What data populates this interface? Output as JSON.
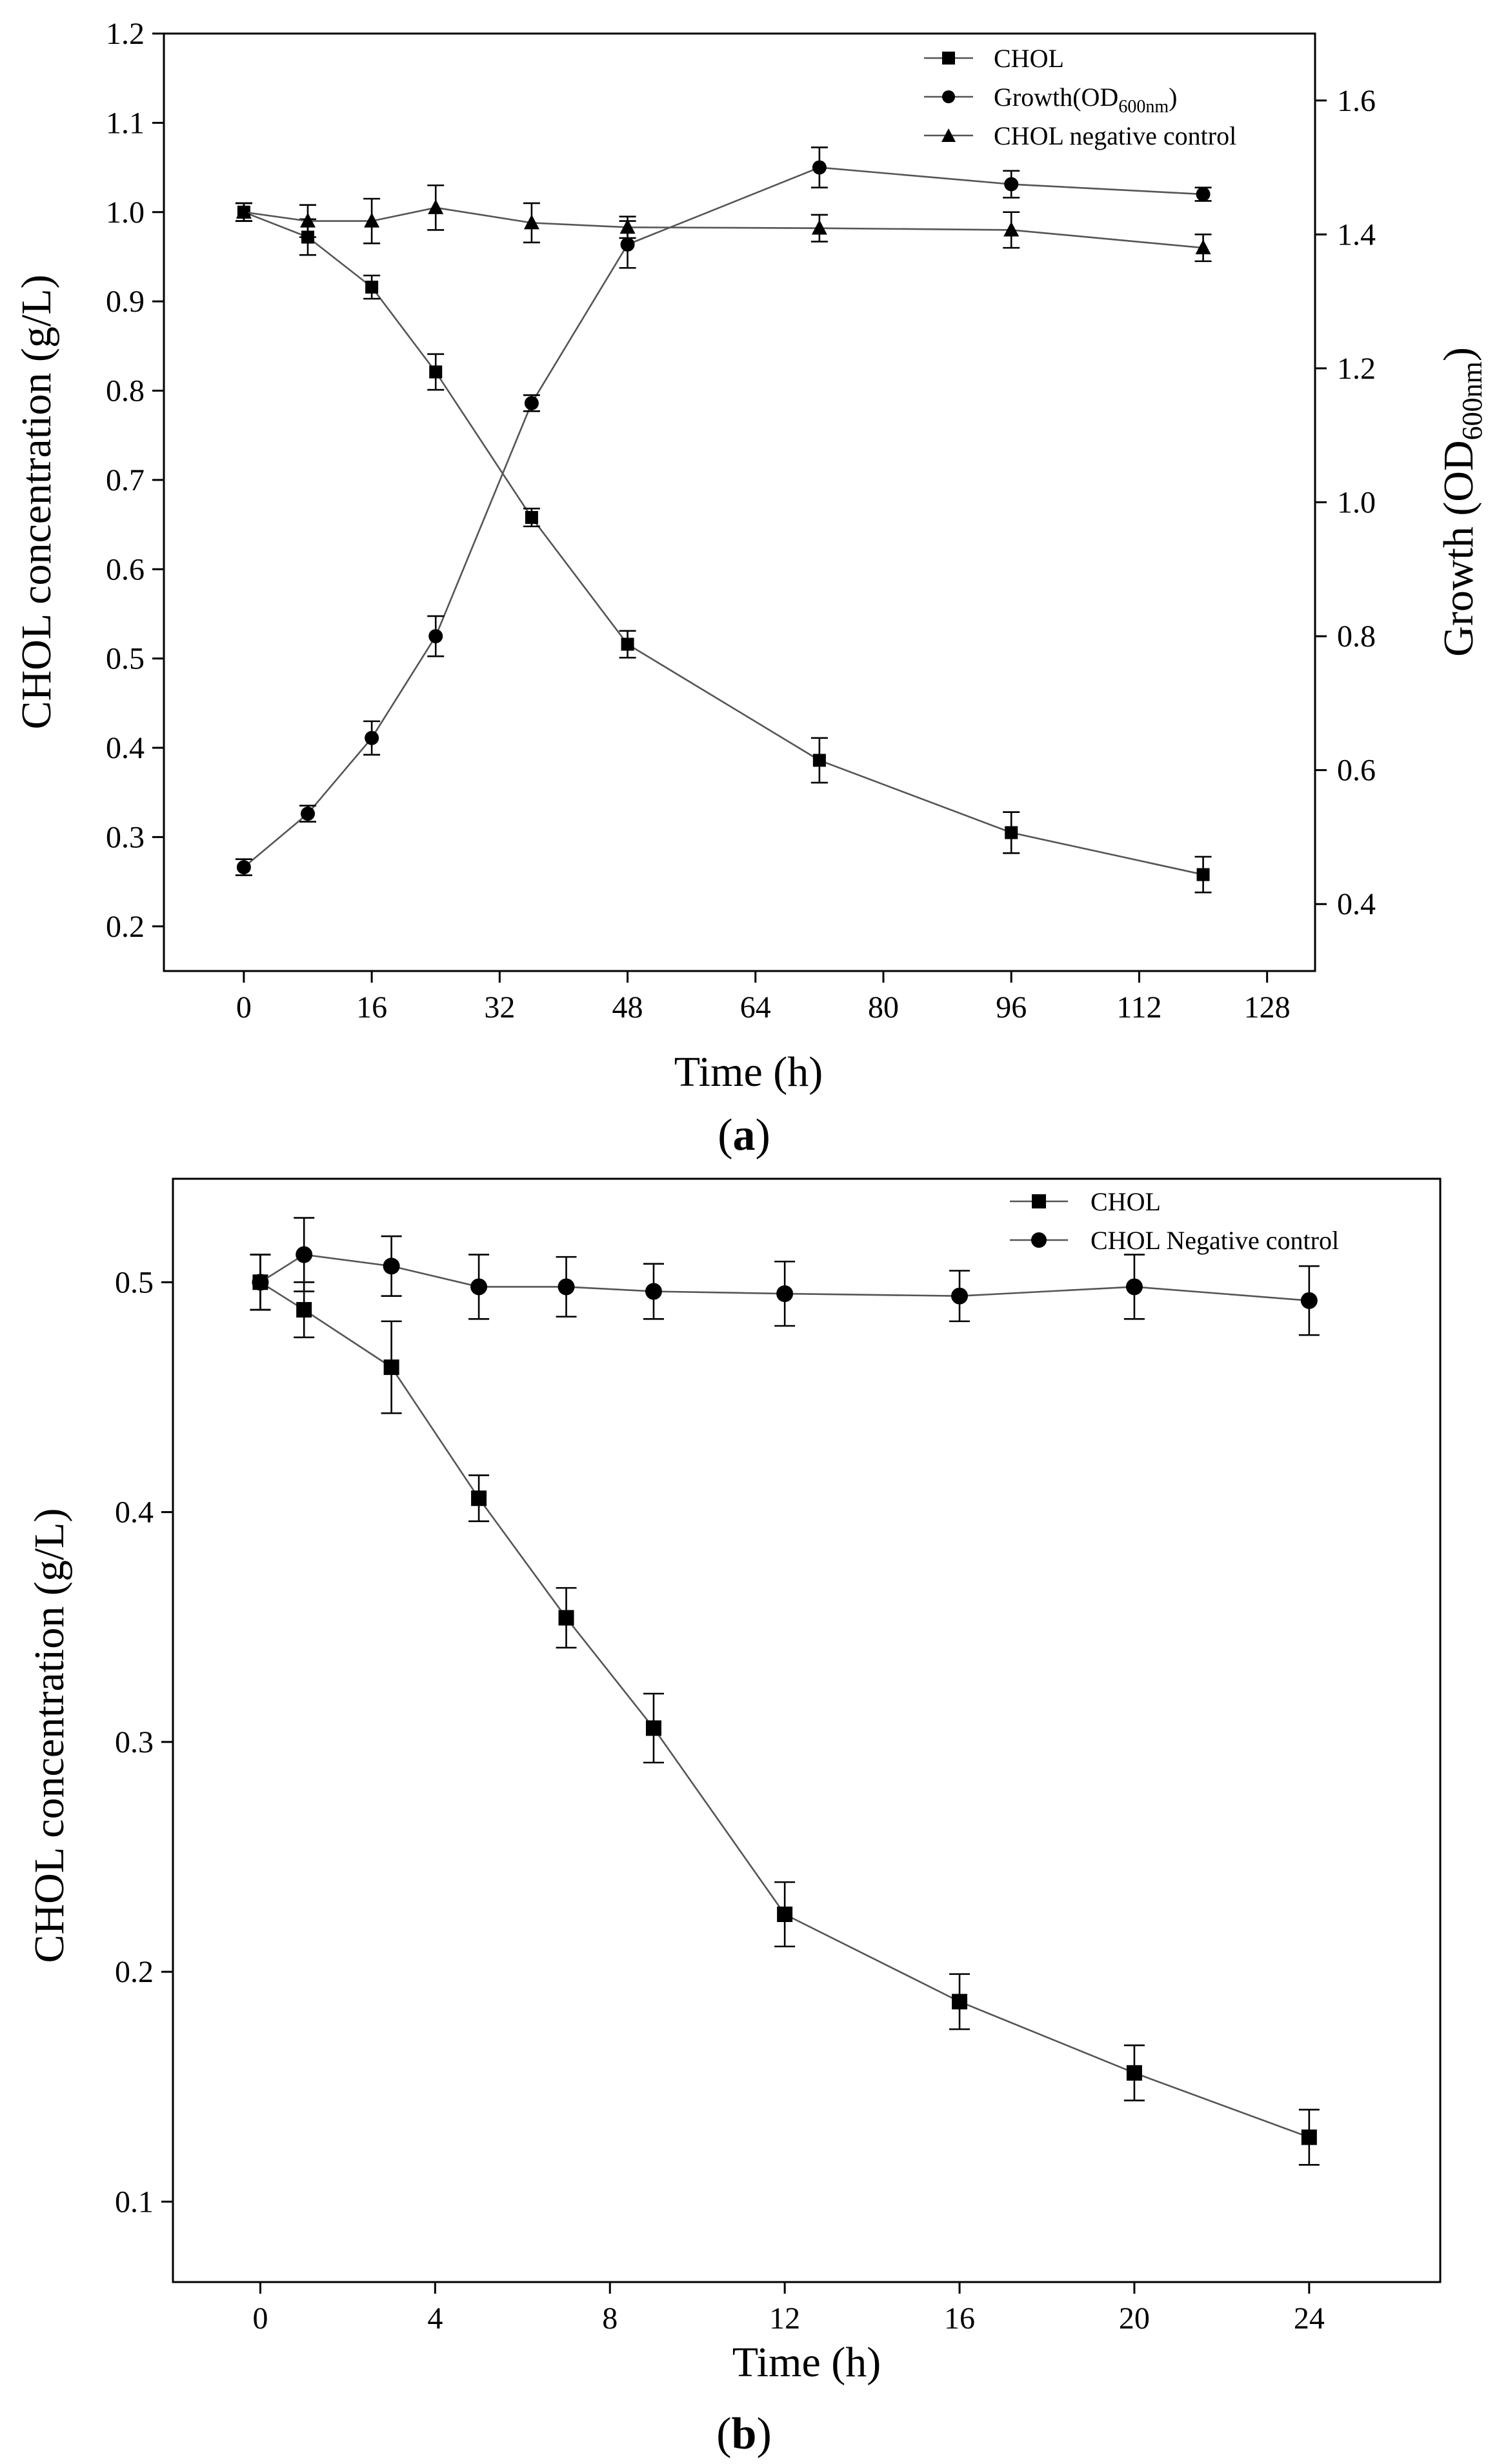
{
  "chart_data": [
    {
      "panel": "(a)",
      "caption_letter": "a",
      "type": "line",
      "xlabel": "Time (h)",
      "ylabel": "CHOL concentration (g/L)",
      "y2label": "Growth (OD",
      "y2label_sub": "600nm",
      "y2label_end": ")",
      "xlim": [
        -10,
        134
      ],
      "ylim": [
        0.15,
        1.2
      ],
      "y2lim": [
        0.3,
        1.7
      ],
      "xticks": [
        "0",
        "16",
        "32",
        "48",
        "64",
        "80",
        "96",
        "112",
        "128"
      ],
      "xtick_values": [
        0,
        16,
        32,
        48,
        64,
        80,
        96,
        112,
        128
      ],
      "yticks": [
        "0.2",
        "0.3",
        "0.4",
        "0.5",
        "0.6",
        "0.7",
        "0.8",
        "0.9",
        "1.0",
        "1.1",
        "1.2"
      ],
      "ytick_values": [
        0.2,
        0.3,
        0.4,
        0.5,
        0.6,
        0.7,
        0.8,
        0.9,
        1.0,
        1.1,
        1.2
      ],
      "y2ticks": [
        "0.4",
        "0.6",
        "0.8",
        "1.0",
        "1.2",
        "1.4",
        "1.6"
      ],
      "y2tick_values": [
        0.4,
        0.6,
        0.8,
        1.0,
        1.2,
        1.4,
        1.6
      ],
      "series": [
        {
          "name": "CHOL",
          "legend_label": "CHOL",
          "marker": "square",
          "axis": "left",
          "x": [
            0,
            8,
            16,
            24,
            36,
            48,
            72,
            96,
            120
          ],
          "values": [
            1.0,
            0.972,
            0.916,
            0.821,
            0.658,
            0.516,
            0.386,
            0.305,
            0.258
          ],
          "errors": [
            0.01,
            0.02,
            0.013,
            0.02,
            0.01,
            0.015,
            0.025,
            0.023,
            0.02
          ]
        },
        {
          "name": "Growth(OD600nm)",
          "legend_label": "Growth(OD",
          "legend_sub": "600nm",
          "legend_end": ")",
          "marker": "circle",
          "axis": "right",
          "x": [
            0,
            8,
            16,
            24,
            36,
            48,
            72,
            96,
            120
          ],
          "values": [
            0.455,
            0.535,
            0.648,
            0.8,
            1.148,
            1.385,
            1.5,
            1.475,
            1.46
          ],
          "errors": [
            0.012,
            0.012,
            0.025,
            0.03,
            0.012,
            0.035,
            0.03,
            0.02,
            0.01
          ]
        },
        {
          "name": "CHOL negative control",
          "legend_label": "CHOL negative control",
          "marker": "triangle",
          "axis": "left",
          "x": [
            0,
            8,
            16,
            24,
            36,
            48,
            72,
            96,
            120
          ],
          "values": [
            1.0,
            0.99,
            0.99,
            1.005,
            0.988,
            0.983,
            0.982,
            0.98,
            0.96
          ],
          "errors": [
            0.01,
            0.018,
            0.025,
            0.025,
            0.022,
            0.012,
            0.015,
            0.02,
            0.015
          ]
        }
      ]
    },
    {
      "panel": "(b)",
      "caption_letter": "b",
      "type": "line",
      "xlabel": "Time (h)",
      "ylabel": "CHOL concentration (g/L)",
      "xlim": [
        -2,
        27
      ],
      "ylim": [
        0.065,
        0.545
      ],
      "xticks": [
        "0",
        "4",
        "8",
        "12",
        "16",
        "20",
        "24"
      ],
      "xtick_values": [
        0,
        4,
        8,
        12,
        16,
        20,
        24
      ],
      "yticks": [
        "0.1",
        "0.2",
        "0.3",
        "0.4",
        "0.5"
      ],
      "ytick_values": [
        0.1,
        0.2,
        0.3,
        0.4,
        0.5
      ],
      "series": [
        {
          "name": "CHOL",
          "legend_label": "CHOL",
          "marker": "square",
          "x": [
            0,
            1,
            3,
            5,
            7,
            9,
            12,
            16,
            20,
            24
          ],
          "values": [
            0.5,
            0.488,
            0.463,
            0.406,
            0.354,
            0.306,
            0.225,
            0.187,
            0.156,
            0.128
          ],
          "errors": [
            0.012,
            0.012,
            0.02,
            0.01,
            0.013,
            0.015,
            0.014,
            0.012,
            0.012,
            0.012
          ]
        },
        {
          "name": "CHOL Negative control",
          "legend_label": "CHOL Negative control",
          "marker": "circle",
          "x": [
            0,
            1,
            3,
            5,
            7,
            9,
            12,
            16,
            20,
            24
          ],
          "values": [
            0.5,
            0.512,
            0.507,
            0.498,
            0.498,
            0.496,
            0.495,
            0.494,
            0.498,
            0.492
          ],
          "errors": [
            0.012,
            0.016,
            0.013,
            0.014,
            0.013,
            0.012,
            0.014,
            0.011,
            0.014,
            0.015
          ]
        }
      ]
    }
  ]
}
